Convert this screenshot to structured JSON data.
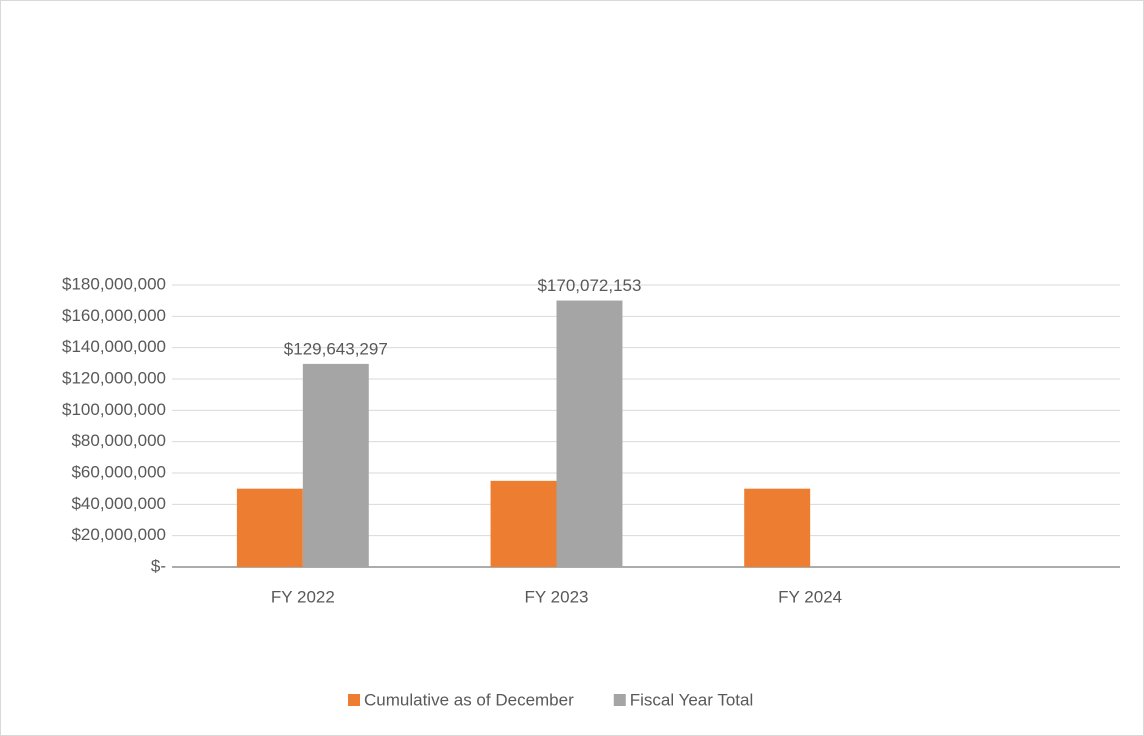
{
  "chart_data": {
    "type": "bar",
    "categories": [
      "FY 2022",
      "FY 2023",
      "FY 2024"
    ],
    "series": [
      {
        "name": "Cumulative as of December",
        "color": "#ed7d31",
        "values": [
          50000000,
          55000000,
          50000000
        ]
      },
      {
        "name": "Fiscal Year Total",
        "color": "#a5a5a5",
        "values": [
          129643297,
          170072153,
          null
        ],
        "value_labels": [
          "$129,643,297",
          "$170,072,153",
          null
        ]
      }
    ],
    "ylim": [
      0,
      180000000
    ],
    "yticks": [
      {
        "value": 0,
        "label": "$-"
      },
      {
        "value": 20000000,
        "label": "$20,000,000"
      },
      {
        "value": 40000000,
        "label": "$40,000,000"
      },
      {
        "value": 60000000,
        "label": "$60,000,000"
      },
      {
        "value": 80000000,
        "label": "$80,000,000"
      },
      {
        "value": 100000000,
        "label": "$100,000,000"
      },
      {
        "value": 120000000,
        "label": "$120,000,000"
      },
      {
        "value": 140000000,
        "label": "$140,000,000"
      },
      {
        "value": 160000000,
        "label": "$160,000,000"
      },
      {
        "value": 180000000,
        "label": "$180,000,000"
      }
    ],
    "grid": true
  }
}
